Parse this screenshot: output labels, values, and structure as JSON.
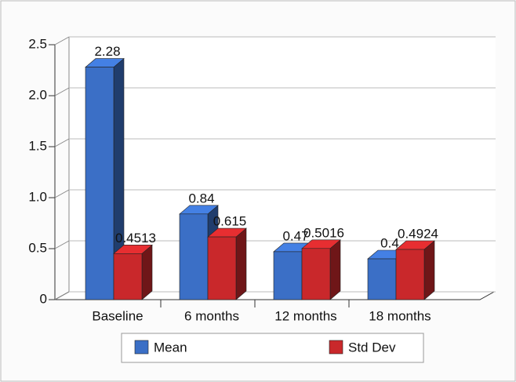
{
  "chart_data": {
    "type": "bar3d",
    "categories": [
      "Baseline",
      "6 months",
      "12 months",
      "18 months"
    ],
    "series": [
      {
        "name": "Mean",
        "color": "#3b6fc6",
        "values": [
          2.28,
          0.84,
          0.47,
          0.4
        ]
      },
      {
        "name": "Std Dev",
        "color": "#c9282b",
        "values": [
          0.4513,
          0.615,
          0.5016,
          0.4924
        ]
      }
    ],
    "ylim": [
      0,
      2.5
    ],
    "yticks": [
      0,
      0.5,
      {
        "value": 1,
        "label": "1.0"
      },
      1.5,
      {
        "value": 2,
        "label": "2.0"
      },
      2.5
    ],
    "grid": true,
    "legend": "bottom"
  }
}
